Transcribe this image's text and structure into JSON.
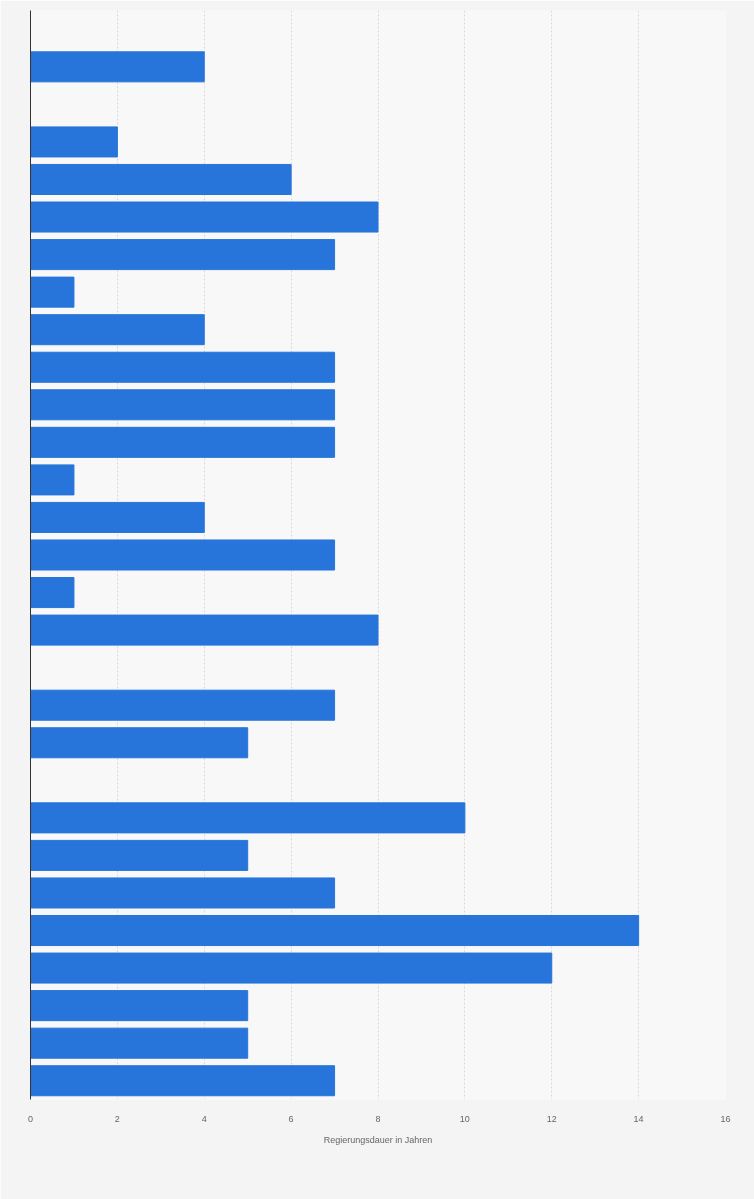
{
  "chart_data": {
    "type": "bar",
    "orientation": "horizontal",
    "categories": [
      null,
      null,
      null,
      null,
      null,
      null,
      null,
      null,
      null,
      null,
      null,
      null,
      null,
      null,
      null,
      null,
      null,
      null,
      null,
      null,
      null,
      null,
      null,
      null,
      null,
      null,
      null,
      null,
      null
    ],
    "values": [
      null,
      4,
      null,
      2,
      6,
      8,
      7,
      1,
      4,
      7,
      7,
      7,
      1,
      4,
      7,
      1,
      8,
      null,
      7,
      5,
      null,
      10,
      5,
      7,
      14,
      12,
      5,
      5,
      7
    ],
    "color": "#2775da",
    "xlabel": "Regierungsdauer in Jahren",
    "xlim": [
      0,
      16
    ],
    "xticks": [
      0,
      2,
      4,
      6,
      8,
      10,
      12,
      14,
      16
    ],
    "grid": "x"
  }
}
